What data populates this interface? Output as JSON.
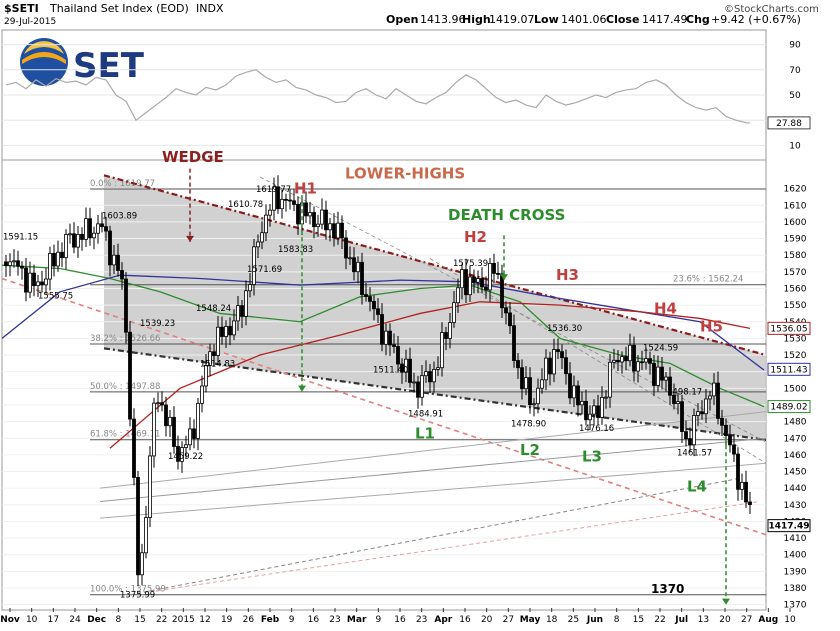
{
  "header": {
    "symbol": "$SETI",
    "name": "Thailand Set Index (EOD)",
    "exchange": "INDX",
    "date": "29-Jul-2015",
    "open_label": "Open",
    "open": "1413.96",
    "high_label": "High",
    "high": "1419.07",
    "low_label": "Low",
    "low": "1401.06",
    "close_label": "Close",
    "close": "1417.49",
    "chg_label": "Chg",
    "chg": "+9.42 (+0.67%)",
    "brand": "©StockCharts.com",
    "logo_text": "SET"
  },
  "chart_data": [
    {
      "type": "line",
      "panel": "RSI",
      "yaxis_ticks": [
        10,
        30,
        50,
        70,
        90
      ],
      "ylim": [
        0,
        100
      ],
      "last_value": "27.88",
      "x": [
        0,
        10,
        20,
        30,
        40,
        50,
        60,
        70,
        80,
        90,
        100,
        110,
        120,
        130,
        140,
        150,
        160,
        170,
        180,
        190,
        200,
        210,
        220,
        230,
        240,
        250,
        260,
        270,
        280,
        290,
        300,
        310,
        320,
        330,
        340,
        350,
        360,
        370,
        380,
        390,
        400,
        410,
        420,
        430,
        440,
        450,
        460,
        470,
        480,
        490,
        500,
        510,
        520,
        530,
        540,
        550,
        560,
        570,
        580,
        590,
        600,
        610,
        620,
        630,
        640,
        650,
        660,
        670,
        680,
        690,
        700,
        710,
        720,
        730,
        740,
        744
      ],
      "values": [
        58,
        60,
        55,
        62,
        57,
        63,
        60,
        61,
        58,
        64,
        62,
        50,
        45,
        30,
        36,
        42,
        48,
        55,
        52,
        50,
        56,
        54,
        58,
        65,
        68,
        70,
        64,
        60,
        62,
        56,
        54,
        50,
        48,
        44,
        45,
        52,
        55,
        50,
        47,
        55,
        50,
        45,
        43,
        48,
        52,
        60,
        66,
        62,
        55,
        48,
        44,
        46,
        42,
        40,
        50,
        45,
        42,
        44,
        47,
        50,
        48,
        52,
        54,
        55,
        60,
        62,
        58,
        50,
        44,
        40,
        38,
        40,
        33,
        30,
        28,
        27.88
      ]
    },
    {
      "type": "candlestick",
      "panel": "price",
      "last_value": "1417.49",
      "ylim": [
        1368,
        1636
      ],
      "yaxis_ticks": [
        1370,
        1380,
        1390,
        1400,
        1410,
        1420,
        1430,
        1440,
        1450,
        1460,
        1470,
        1480,
        1490,
        1500,
        1510,
        1520,
        1530,
        1540,
        1550,
        1560,
        1570,
        1580,
        1590,
        1600,
        1610,
        1620
      ],
      "xaxis_labels": [
        "Nov",
        "10",
        "17",
        "24",
        "Dec",
        "8",
        "15",
        "22",
        "2015",
        "12",
        "19",
        "26",
        "Feb",
        "9",
        "16",
        "23",
        "Mar",
        "9",
        "16",
        "23",
        "Apr",
        "16",
        "20",
        "27",
        "May",
        "18",
        "25",
        "Jun",
        "8",
        "15",
        "22",
        "Jul",
        "13",
        "20",
        "27",
        "Aug",
        "10"
      ],
      "side_labels": [
        "1536.05",
        "1511.43",
        "1489.02",
        "1417.49"
      ],
      "price_labels": [
        {
          "text": "1591.15",
          "x": 3,
          "y": 1591.15
        },
        {
          "text": "1555.75",
          "x": 38,
          "y": 1555.75
        },
        {
          "text": "1603.89",
          "x": 102,
          "y": 1603.89
        },
        {
          "text": "1539.23",
          "x": 140,
          "y": 1539.23
        },
        {
          "text": "1548.24",
          "x": 196,
          "y": 1548.24
        },
        {
          "text": "1514.83",
          "x": 200,
          "y": 1514.83
        },
        {
          "text": "1610.78",
          "x": 228,
          "y": 1610.78
        },
        {
          "text": "1619.77",
          "x": 256,
          "y": 1619.77
        },
        {
          "text": "1571.69",
          "x": 247,
          "y": 1571.69
        },
        {
          "text": "1583.83",
          "x": 278,
          "y": 1583.83
        },
        {
          "text": "1459.22",
          "x": 168,
          "y": 1459.22
        },
        {
          "text": "1375.99",
          "x": 120,
          "y": 1375.99
        },
        {
          "text": "1511.40",
          "x": 373,
          "y": 1511.4
        },
        {
          "text": "1484.91",
          "x": 408,
          "y": 1484.91
        },
        {
          "text": "1575.39",
          "x": 453,
          "y": 1575.39
        },
        {
          "text": "1478.90",
          "x": 511,
          "y": 1478.9
        },
        {
          "text": "1536.30",
          "x": 547,
          "y": 1536.3
        },
        {
          "text": "1476.16",
          "x": 579,
          "y": 1476.16
        },
        {
          "text": "1524.59",
          "x": 643,
          "y": 1524.59
        },
        {
          "text": "1498.17",
          "x": 667,
          "y": 1498.17
        },
        {
          "text": "1461.57",
          "x": 677,
          "y": 1461.57
        }
      ],
      "fib_levels": [
        {
          "text": "0.0% : 1619.77",
          "x": 90,
          "y": 1619.77
        },
        {
          "text": "23.6% : 1562.24",
          "x": 673,
          "y": 1562.24
        },
        {
          "text": "38.2% : 1526.66",
          "x": 90,
          "y": 1526.66
        },
        {
          "text": "50.0% : 1497.88",
          "x": 90,
          "y": 1497.88
        },
        {
          "text": "61.8% : 1469.11",
          "x": 90,
          "y": 1469.11
        },
        {
          "text": "100.0% : 1375.99",
          "x": 90,
          "y": 1375.99
        }
      ],
      "annotations": [
        {
          "text": "WEDGE",
          "x": 162,
          "y": 1636,
          "color": "#8b2020"
        },
        {
          "text": "LOWER-HIGHS",
          "x": 345,
          "y": 1626,
          "color": "#c96a4a"
        },
        {
          "text": "DEATH CROSS",
          "x": 448,
          "y": 1601,
          "color": "#2e8b2e"
        },
        {
          "text": "H1",
          "x": 294,
          "y": 1617,
          "color": "#c04040"
        },
        {
          "text": "H2",
          "x": 464,
          "y": 1588,
          "color": "#c04040"
        },
        {
          "text": "H3",
          "x": 556,
          "y": 1565,
          "color": "#c04040"
        },
        {
          "text": "H4",
          "x": 654,
          "y": 1545,
          "color": "#c04040"
        },
        {
          "text": "H5",
          "x": 700,
          "y": 1534,
          "color": "#c04040"
        },
        {
          "text": "L1",
          "x": 415,
          "y": 1470,
          "color": "#2e8b2e"
        },
        {
          "text": "L2",
          "x": 520,
          "y": 1460,
          "color": "#2e8b2e"
        },
        {
          "text": "L3",
          "x": 582,
          "y": 1456,
          "color": "#2e8b2e"
        },
        {
          "text": "L4",
          "x": 687,
          "y": 1438,
          "color": "#2e8b2e"
        },
        {
          "text": "1370",
          "x": 651,
          "y": 1377,
          "color": "#000000"
        }
      ]
    }
  ]
}
